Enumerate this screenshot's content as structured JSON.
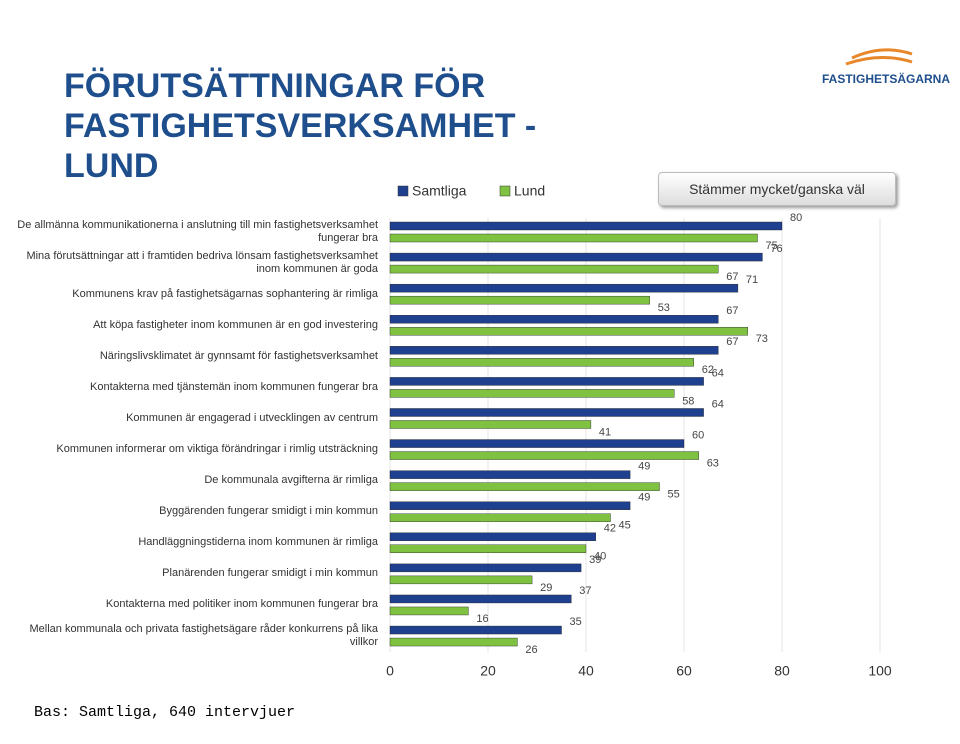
{
  "chart_data": {
    "type": "hbar",
    "title": "FÖRUTSÄTTNINGAR FÖR FASTIGHETSVERKSAMHET - LUND",
    "logo": "FASTIGHETSÄGARNA",
    "subtitle": "Stämmer mycket/ganska väl",
    "footnote": "Bas: Samtliga, 640 intervjuer",
    "categories": [
      "De allmänna kommunikationerna i anslutning till min fastighetsverksamhet fungerar bra",
      "Mina förutsättningar att i framtiden bedriva lönsam fastighetsverksamhet inom kommunen är goda",
      "Kommunens krav på fastighetsägarnas sophantering är rimliga",
      "Att köpa fastigheter inom kommunen är en god investering",
      "Näringslivsklimatet är gynnsamt för fastighetsverksamhet",
      "Kontakterna med tjänstemän inom kommunen fungerar bra",
      "Kommunen är engagerad i utvecklingen av centrum",
      "Kommunen informerar om viktiga förändringar i rimlig utsträckning",
      "De kommunala avgifterna är rimliga",
      "Byggärenden fungerar smidigt i min kommun",
      "Handläggningstiderna inom kommunen är rimliga",
      "Planärenden fungerar smidigt i min kommun",
      "Kontakterna med politiker inom kommunen fungerar bra",
      "Mellan kommunala och privata fastighetsägare råder konkurrens på lika villkor"
    ],
    "series": [
      {
        "name": "Samtliga",
        "color": "#1f3f8f",
        "values": [
          80,
          76,
          71,
          67,
          67,
          64,
          64,
          60,
          49,
          49,
          42,
          39,
          37,
          35
        ]
      },
      {
        "name": "Lund",
        "color": "#7fc241",
        "values": [
          75,
          67,
          53,
          73,
          62,
          58,
          41,
          63,
          55,
          45,
          40,
          29,
          16,
          26
        ]
      }
    ],
    "xlim": [
      0,
      100
    ],
    "xticks": [
      0,
      20,
      40,
      60,
      80,
      100
    ],
    "grid": true
  }
}
